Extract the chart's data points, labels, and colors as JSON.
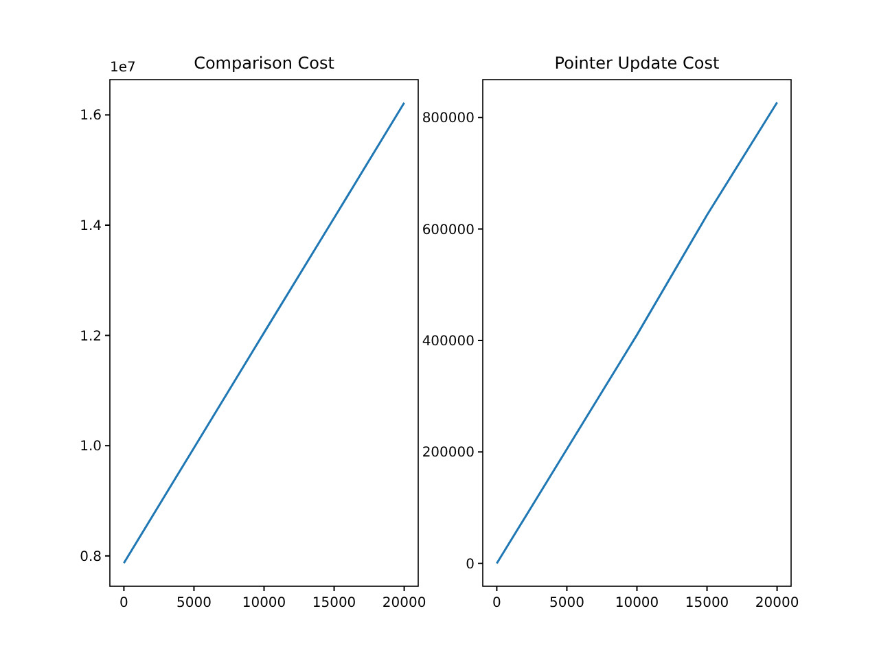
{
  "chart_data": [
    {
      "type": "line",
      "title": "Comparison Cost",
      "x": [
        0,
        5000,
        10000,
        15000,
        20000
      ],
      "series": [
        {
          "color": "#1f77b4",
          "values": [
            0.787,
            0.996,
            1.205,
            1.413,
            1.622
          ]
        }
      ],
      "xlim": [
        -1000,
        21000
      ],
      "xticks": [
        0,
        5000,
        10000,
        15000,
        20000
      ],
      "ylim": [
        0.745,
        1.664
      ],
      "yticks": [
        0.8,
        {
          "value": 1,
          "label": "1.0"
        },
        1.2,
        1.4,
        1.6
      ],
      "annotations": [
        "1e7"
      ],
      "grid": false
    },
    {
      "type": "line",
      "title": "Pointer Update Cost",
      "x": [
        0,
        5000,
        10000,
        15000,
        20000
      ],
      "series": [
        {
          "color": "#1f77b4",
          "values": [
            0,
            205000,
            410000,
            625000,
            827000
          ]
        }
      ],
      "xlim": [
        -1000,
        21000
      ],
      "xticks": [
        0,
        5000,
        10000,
        15000,
        20000
      ],
      "ylim": [
        -41000,
        868000
      ],
      "yticks": [
        0,
        200000,
        400000,
        600000,
        800000
      ],
      "grid": false
    }
  ]
}
